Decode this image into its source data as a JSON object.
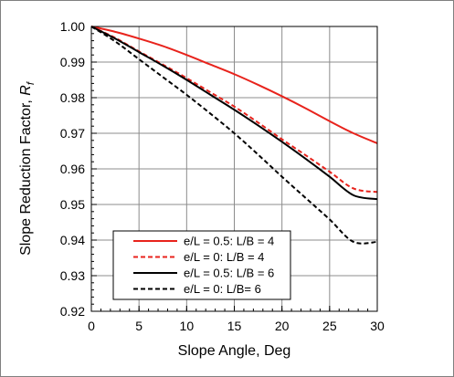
{
  "chart_data": {
    "type": "line",
    "xlabel": "Slope Angle, Deg",
    "ylabel_main": "Slope Reduction Factor, ",
    "ylabel_symbol": "R",
    "ylabel_subscript": "f",
    "xlim": [
      0,
      30
    ],
    "ylim": [
      0.92,
      1.0
    ],
    "x_ticks": [
      "0",
      "5",
      "10",
      "15",
      "20",
      "25",
      "30"
    ],
    "y_ticks": [
      "0.92",
      "0.93",
      "0.94",
      "0.95",
      "0.96",
      "0.97",
      "0.98",
      "0.99",
      "1.00"
    ],
    "grid": true,
    "legend_position": "lower-left",
    "x": [
      0,
      2.5,
      5,
      7.5,
      10,
      12.5,
      15,
      17.5,
      20,
      22.5,
      25,
      27.5,
      30
    ],
    "series": [
      {
        "name": "e/L = 0.5: L/B = 4",
        "color": "#e8231c",
        "dash": "solid",
        "values": [
          1.0,
          0.9985,
          0.9966,
          0.9945,
          0.992,
          0.9893,
          0.9866,
          0.9836,
          0.9804,
          0.977,
          0.9734,
          0.97,
          0.9672
        ]
      },
      {
        "name": "e/L = 0: L/B = 4",
        "color": "#e8231c",
        "dash": "dashed",
        "values": [
          1.0,
          0.9968,
          0.993,
          0.9893,
          0.9855,
          0.9815,
          0.9775,
          0.973,
          0.9683,
          0.9638,
          0.9592,
          0.9545,
          0.9535
        ]
      },
      {
        "name": "e/L = 0.5: L/B = 6",
        "color": "#000000",
        "dash": "solid",
        "values": [
          1.0,
          0.9966,
          0.9928,
          0.989,
          0.985,
          0.9808,
          0.9766,
          0.9722,
          0.9676,
          0.9628,
          0.9578,
          0.9526,
          0.9515
        ]
      },
      {
        "name": "e/L = 0: L/B= 6",
        "color": "#000000",
        "dash": "dashed",
        "values": [
          1.0,
          0.9958,
          0.9908,
          0.9858,
          0.9808,
          0.9755,
          0.97,
          0.964,
          0.9578,
          0.9518,
          0.9458,
          0.9395,
          0.9395
        ]
      }
    ]
  }
}
